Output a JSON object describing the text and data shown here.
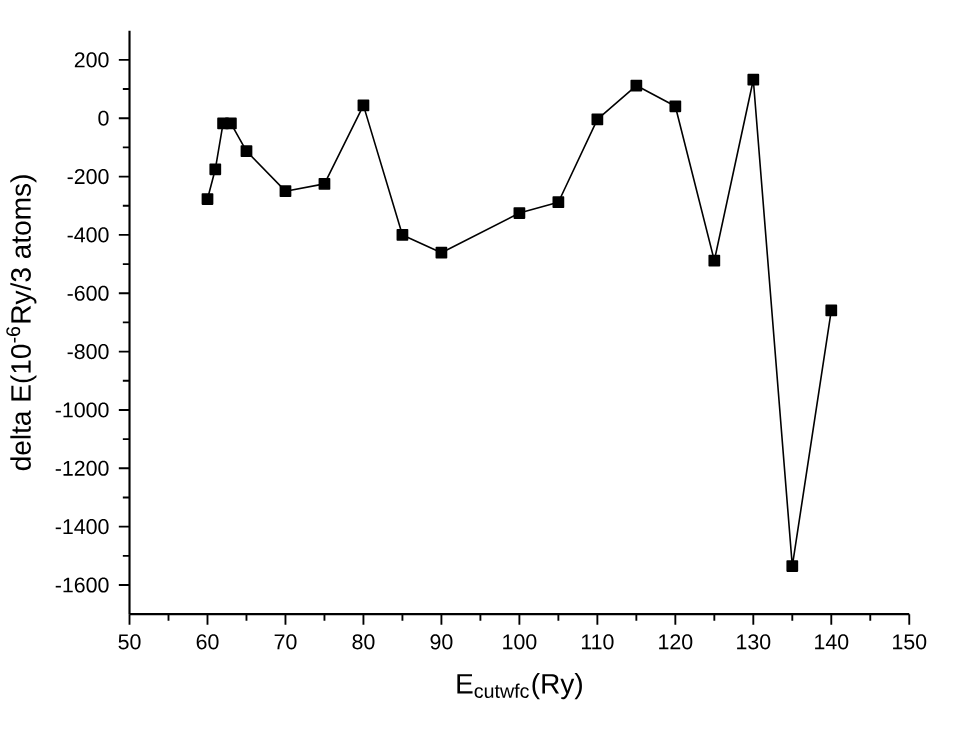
{
  "chart_data": {
    "type": "line",
    "xlabel": "E$_{cutwfc}$(Ry)",
    "ylabel": "delta E(10$^{-6}$Ry/3 atoms)",
    "x": [
      60,
      61,
      62,
      63,
      65,
      70,
      75,
      80,
      85,
      90,
      100,
      105,
      110,
      115,
      120,
      125,
      130,
      135,
      140
    ],
    "series": [
      {
        "color": "#000000",
        "values": [
          -277,
          -175,
          -18,
          -18,
          -113,
          -250,
          -225,
          44,
          -400,
          -461,
          -325,
          -288,
          -4,
          112,
          41,
          -488,
          132,
          -1535,
          -659
        ]
      }
    ],
    "xlim": [
      50,
      150
    ],
    "xticks": [
      50,
      60,
      70,
      80,
      90,
      100,
      110,
      120,
      130,
      140,
      150
    ],
    "ylim": [
      -1700,
      300
    ],
    "yticks": [
      -1600,
      -1400,
      -1200,
      -1000,
      -800,
      -600,
      -400,
      -200,
      0,
      200
    ],
    "marker": "square",
    "line_style": "solid"
  }
}
